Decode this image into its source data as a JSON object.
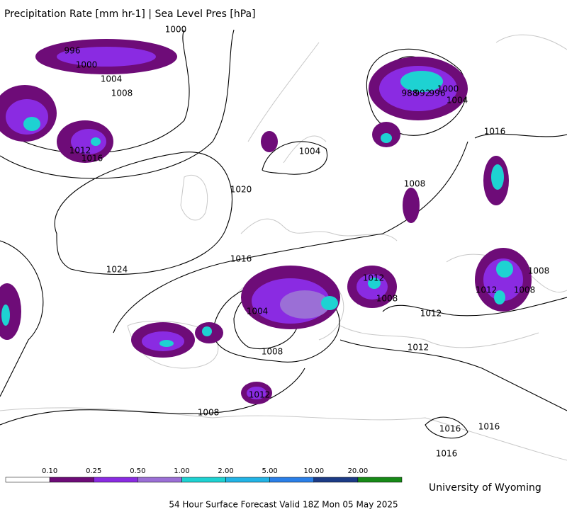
{
  "header": {
    "title": "Precipitation Rate [mm hr-1] | Sea Level Pres [hPa]"
  },
  "isobar_labels": [
    1000,
    996,
    1000,
    1004,
    1008,
    1012,
    1016,
    1020,
    1024,
    1016,
    1004,
    1008,
    988,
    992,
    996,
    1000,
    1004,
    1016,
    1012,
    1008,
    1012,
    1012,
    1004,
    1008,
    1012,
    1008,
    1012,
    1008,
    1008,
    1016,
    1016,
    1016
  ],
  "colorbar": {
    "labels": [
      "0.10",
      "0.25",
      "0.50",
      "1.00",
      "2.00",
      "5.00",
      "10.00",
      "20.00"
    ],
    "colors": [
      "#ffffff",
      "#6e0c78",
      "#8a2be2",
      "#9b6fd6",
      "#1ed2d2",
      "#22b4e6",
      "#2a7fe8",
      "#1c3b86",
      "#178a17"
    ]
  },
  "credit": "University of Wyoming",
  "footer": "54 Hour Surface Forecast Valid 18Z Mon 05 May 2025"
}
